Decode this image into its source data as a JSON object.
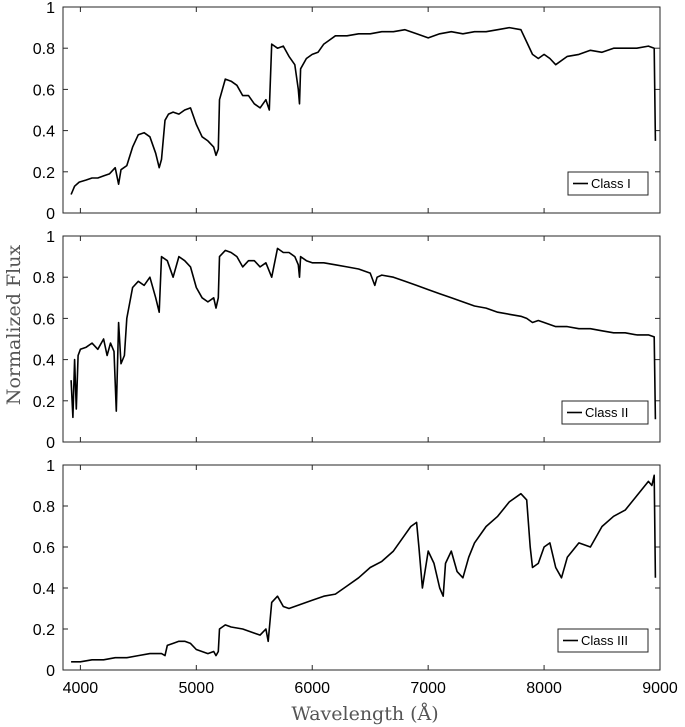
{
  "chart_data": {
    "type": "line",
    "xlabel": "Wavelength (Å)",
    "ylabel": "Normalized Flux",
    "xlim": [
      3850,
      9000
    ],
    "ylim": [
      0,
      1
    ],
    "xticks": [
      4000,
      5000,
      6000,
      7000,
      8000,
      9000
    ],
    "yticks": [
      0,
      0.2,
      0.4,
      0.6,
      0.8,
      1
    ],
    "xtick_labels": [
      "4000",
      "5000",
      "6000",
      "7000",
      "8000",
      "9000"
    ],
    "ytick_labels": [
      "0",
      "0.2",
      "0.4",
      "0.6",
      "0.8",
      "1"
    ],
    "grid": false,
    "legend_position": "bottom-right",
    "line_color": "#000000",
    "panels": [
      {
        "legend": "Class I",
        "x": [
          3920,
          3950,
          3990,
          4050,
          4100,
          4150,
          4200,
          4250,
          4300,
          4330,
          4350,
          4400,
          4450,
          4500,
          4550,
          4600,
          4650,
          4680,
          4700,
          4730,
          4760,
          4800,
          4850,
          4900,
          4950,
          5000,
          5050,
          5100,
          5150,
          5170,
          5190,
          5200,
          5250,
          5300,
          5350,
          5400,
          5450,
          5500,
          5550,
          5600,
          5630,
          5650,
          5700,
          5750,
          5800,
          5850,
          5880,
          5890,
          5900,
          5950,
          6000,
          6050,
          6100,
          6150,
          6200,
          6300,
          6400,
          6500,
          6600,
          6700,
          6800,
          6900,
          7000,
          7100,
          7200,
          7300,
          7400,
          7500,
          7600,
          7700,
          7800,
          7850,
          7900,
          7950,
          8000,
          8050,
          8100,
          8200,
          8300,
          8400,
          8500,
          8600,
          8700,
          8800,
          8900,
          8950,
          8960
        ],
        "y": [
          0.09,
          0.13,
          0.15,
          0.16,
          0.17,
          0.17,
          0.18,
          0.19,
          0.22,
          0.14,
          0.21,
          0.23,
          0.32,
          0.38,
          0.39,
          0.37,
          0.29,
          0.22,
          0.26,
          0.45,
          0.48,
          0.49,
          0.48,
          0.5,
          0.51,
          0.43,
          0.37,
          0.35,
          0.32,
          0.28,
          0.31,
          0.55,
          0.65,
          0.64,
          0.62,
          0.57,
          0.57,
          0.53,
          0.51,
          0.55,
          0.5,
          0.82,
          0.8,
          0.81,
          0.76,
          0.72,
          0.6,
          0.53,
          0.7,
          0.75,
          0.77,
          0.78,
          0.82,
          0.84,
          0.86,
          0.86,
          0.87,
          0.87,
          0.88,
          0.88,
          0.89,
          0.87,
          0.85,
          0.87,
          0.88,
          0.87,
          0.88,
          0.88,
          0.89,
          0.9,
          0.89,
          0.83,
          0.77,
          0.75,
          0.77,
          0.75,
          0.72,
          0.76,
          0.77,
          0.79,
          0.78,
          0.8,
          0.8,
          0.8,
          0.81,
          0.8,
          0.35
        ]
      },
      {
        "legend": "Class II",
        "x": [
          3920,
          3935,
          3950,
          3965,
          3980,
          4000,
          4050,
          4100,
          4150,
          4200,
          4230,
          4260,
          4290,
          4310,
          4330,
          4350,
          4380,
          4400,
          4450,
          4500,
          4550,
          4600,
          4650,
          4680,
          4700,
          4750,
          4800,
          4850,
          4900,
          4950,
          5000,
          5050,
          5100,
          5150,
          5170,
          5190,
          5200,
          5250,
          5300,
          5350,
          5400,
          5450,
          5500,
          5550,
          5600,
          5650,
          5700,
          5750,
          5800,
          5850,
          5880,
          5890,
          5900,
          5950,
          6000,
          6100,
          6200,
          6300,
          6400,
          6500,
          6540,
          6560,
          6600,
          6700,
          6800,
          6900,
          7000,
          7100,
          7200,
          7300,
          7400,
          7500,
          7600,
          7700,
          7800,
          7850,
          7900,
          7950,
          8000,
          8100,
          8200,
          8300,
          8400,
          8500,
          8600,
          8700,
          8800,
          8900,
          8950,
          8960
        ],
        "y": [
          0.3,
          0.12,
          0.4,
          0.16,
          0.42,
          0.45,
          0.46,
          0.48,
          0.45,
          0.5,
          0.42,
          0.48,
          0.44,
          0.15,
          0.58,
          0.38,
          0.42,
          0.6,
          0.75,
          0.78,
          0.76,
          0.8,
          0.7,
          0.63,
          0.9,
          0.88,
          0.8,
          0.9,
          0.88,
          0.85,
          0.75,
          0.7,
          0.68,
          0.7,
          0.65,
          0.7,
          0.9,
          0.93,
          0.92,
          0.9,
          0.85,
          0.88,
          0.88,
          0.85,
          0.87,
          0.8,
          0.94,
          0.92,
          0.92,
          0.9,
          0.86,
          0.8,
          0.9,
          0.88,
          0.87,
          0.87,
          0.86,
          0.85,
          0.84,
          0.82,
          0.76,
          0.8,
          0.81,
          0.8,
          0.78,
          0.76,
          0.74,
          0.72,
          0.7,
          0.68,
          0.66,
          0.65,
          0.63,
          0.62,
          0.61,
          0.6,
          0.58,
          0.59,
          0.58,
          0.56,
          0.56,
          0.55,
          0.55,
          0.54,
          0.53,
          0.53,
          0.52,
          0.52,
          0.51,
          0.11
        ]
      },
      {
        "legend": "Class III",
        "x": [
          3920,
          4000,
          4100,
          4200,
          4300,
          4400,
          4500,
          4600,
          4700,
          4730,
          4750,
          4800,
          4850,
          4900,
          4950,
          5000,
          5100,
          5150,
          5170,
          5190,
          5200,
          5250,
          5300,
          5400,
          5500,
          5550,
          5600,
          5620,
          5650,
          5700,
          5750,
          5800,
          5900,
          6000,
          6100,
          6200,
          6300,
          6400,
          6500,
          6600,
          6700,
          6800,
          6850,
          6900,
          6920,
          6950,
          7000,
          7050,
          7100,
          7130,
          7150,
          7200,
          7250,
          7300,
          7350,
          7400,
          7500,
          7600,
          7700,
          7800,
          7850,
          7880,
          7900,
          7950,
          8000,
          8050,
          8100,
          8150,
          8200,
          8300,
          8400,
          8500,
          8600,
          8700,
          8800,
          8900,
          8930,
          8950,
          8960
        ],
        "y": [
          0.04,
          0.04,
          0.05,
          0.05,
          0.06,
          0.06,
          0.07,
          0.08,
          0.08,
          0.07,
          0.12,
          0.13,
          0.14,
          0.14,
          0.13,
          0.1,
          0.08,
          0.09,
          0.07,
          0.09,
          0.2,
          0.22,
          0.21,
          0.2,
          0.18,
          0.17,
          0.2,
          0.14,
          0.33,
          0.36,
          0.31,
          0.3,
          0.32,
          0.34,
          0.36,
          0.37,
          0.41,
          0.45,
          0.5,
          0.53,
          0.58,
          0.66,
          0.7,
          0.72,
          0.6,
          0.4,
          0.58,
          0.52,
          0.4,
          0.36,
          0.52,
          0.58,
          0.48,
          0.45,
          0.55,
          0.62,
          0.7,
          0.75,
          0.82,
          0.86,
          0.83,
          0.6,
          0.5,
          0.52,
          0.6,
          0.62,
          0.5,
          0.45,
          0.55,
          0.62,
          0.6,
          0.7,
          0.75,
          0.78,
          0.85,
          0.92,
          0.9,
          0.95,
          0.45
        ]
      }
    ]
  }
}
